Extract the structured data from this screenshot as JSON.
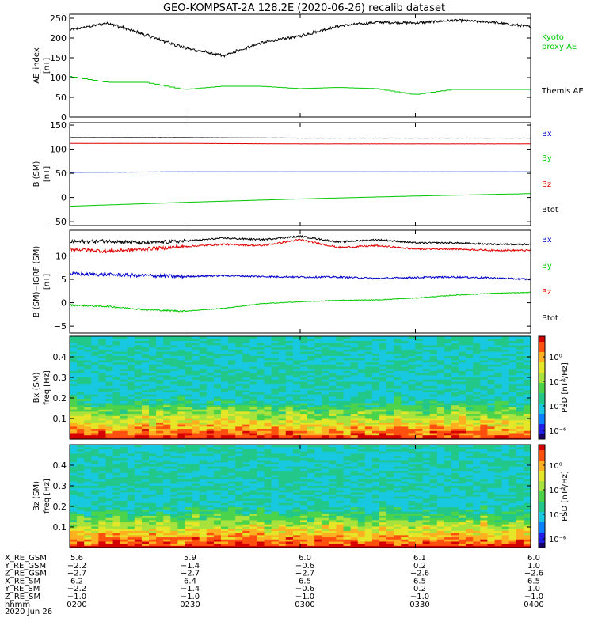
{
  "title": "GEO-KOMPSAT-2A 128.2E (2020-06-26) recalib dataset",
  "colors": {
    "black": "#000000",
    "red": "#e00000",
    "green": "#00c800",
    "blue": "#0000c8"
  },
  "panels": [
    {
      "id": "ae",
      "ylabel1": "AE_index",
      "ylabel2": "[nT]",
      "yticks": [
        0,
        50,
        100,
        150,
        200,
        250
      ],
      "ylim": [
        0,
        260
      ],
      "legend": [
        {
          "text": "Kyoto",
          "color": "green"
        },
        {
          "text": "proxy AE",
          "color": "green"
        },
        {
          "text": "Themis AE",
          "color": "black"
        }
      ]
    },
    {
      "id": "bsm",
      "ylabel1": "B (SM)",
      "ylabel2": "[nT]",
      "yticks": [
        -50,
        0,
        50,
        100,
        150
      ],
      "ylim": [
        -58,
        155
      ],
      "legend": [
        {
          "text": "Bx",
          "color": "blue"
        },
        {
          "text": "By",
          "color": "green"
        },
        {
          "text": "Bz",
          "color": "red"
        },
        {
          "text": "Btot",
          "color": "black"
        }
      ]
    },
    {
      "id": "bdiff",
      "ylabel1": "B (SM)−IGRF (SM)",
      "ylabel2": "[nT]",
      "yticks": [
        -5,
        0,
        5,
        10
      ],
      "ylim": [
        -6.5,
        15.5
      ],
      "legend": [
        {
          "text": "Bx",
          "color": "blue"
        },
        {
          "text": "By",
          "color": "green"
        },
        {
          "text": "Bz",
          "color": "red"
        },
        {
          "text": "Btot",
          "color": "black"
        }
      ]
    },
    {
      "id": "spec_bx",
      "ylabel1": "Bx (SM)",
      "ylabel2": "freq [Hz]",
      "yticks": [
        0.1,
        0.2,
        0.3,
        0.4
      ],
      "ylim": [
        0,
        0.5
      ],
      "colorbar_label": "PSD [nT²/Hz]",
      "colorbar_ticks": [
        "10⁰",
        "10⁻²",
        "10⁻⁴",
        "10⁻⁶"
      ]
    },
    {
      "id": "spec_bz",
      "ylabel1": "Bz (SM)",
      "ylabel2": "freq [Hz]",
      "yticks": [
        0.1,
        0.2,
        0.3,
        0.4
      ],
      "ylim": [
        0,
        0.5
      ],
      "colorbar_label": "PSD [nT²/Hz]",
      "colorbar_ticks": [
        "10⁰",
        "10⁻²",
        "10⁻⁴",
        "10⁻⁶"
      ]
    }
  ],
  "ephemeris": {
    "rows": [
      {
        "label": "X_RE_GSM",
        "values": [
          "5.6",
          "5.9",
          "6.0",
          "6.1",
          "6.0"
        ]
      },
      {
        "label": "Y_RE_GSM",
        "values": [
          "−2.2",
          "−1.4",
          "−0.6",
          "0.2",
          "1.0"
        ]
      },
      {
        "label": "Z_RE_GSM",
        "values": [
          "−2.7",
          "−2.7",
          "−2.7",
          "−2.6",
          "−2.6"
        ]
      },
      {
        "label": "X_RE_SM",
        "values": [
          "6.2",
          "6.4",
          "6.5",
          "6.5",
          "6.5"
        ]
      },
      {
        "label": "Y_RE_SM",
        "values": [
          "−2.2",
          "−1.4",
          "−0.6",
          "0.2",
          "1.0"
        ]
      },
      {
        "label": "Z_RE_SM",
        "values": [
          "−1.0",
          "−1.0",
          "−1.0",
          "−1.0",
          "−1.0"
        ]
      },
      {
        "label": "hhmm",
        "values": [
          "0200",
          "0230",
          "0300",
          "0330",
          "0400"
        ]
      }
    ],
    "date": "2020 Jun 26"
  },
  "chart_data": [
    {
      "type": "line",
      "title": "GEO-KOMPSAT-2A 128.2E (2020-06-26) recalib dataset",
      "xlabel": "hhmm",
      "ylabel": "AE_index [nT]",
      "x": [
        "0200",
        "0210",
        "0220",
        "0230",
        "0240",
        "0250",
        "0300",
        "0310",
        "0320",
        "0330",
        "0340",
        "0350",
        "0400"
      ],
      "ylim": [
        0,
        260
      ],
      "series": [
        {
          "name": "Kyoto proxy AE",
          "color": "green",
          "values": [
            103,
            88,
            88,
            70,
            78,
            78,
            72,
            75,
            72,
            57,
            70,
            70,
            70
          ]
        },
        {
          "name": "Themis AE",
          "color": "black",
          "values": [
            220,
            238,
            207,
            175,
            155,
            188,
            205,
            230,
            240,
            238,
            245,
            240,
            228
          ]
        }
      ]
    },
    {
      "type": "line",
      "ylabel": "B (SM) [nT]",
      "x": [
        "0200",
        "0230",
        "0300",
        "0330",
        "0400"
      ],
      "ylim": [
        -58,
        155
      ],
      "series": [
        {
          "name": "Bx",
          "color": "blue",
          "values": [
            52,
            53,
            53,
            53,
            53
          ]
        },
        {
          "name": "By",
          "color": "green",
          "values": [
            -18,
            -10,
            -3,
            3,
            8
          ]
        },
        {
          "name": "Bz",
          "color": "red",
          "values": [
            112,
            112,
            111,
            111,
            111
          ]
        },
        {
          "name": "Btot",
          "color": "black",
          "values": [
            124,
            124,
            123,
            123,
            123
          ]
        }
      ]
    },
    {
      "type": "line",
      "ylabel": "B (SM)−IGRF (SM) [nT]",
      "x": [
        "0200",
        "0210",
        "0220",
        "0230",
        "0240",
        "0250",
        "0300",
        "0310",
        "0320",
        "0330",
        "0340",
        "0350",
        "0400"
      ],
      "ylim": [
        -6.5,
        15.5
      ],
      "series": [
        {
          "name": "Bx",
          "color": "blue",
          "values": [
            6.2,
            6.0,
            5.8,
            5.6,
            5.8,
            5.6,
            5.5,
            5.5,
            5.2,
            5.4,
            5.5,
            5.3,
            5.0
          ]
        },
        {
          "name": "By",
          "color": "green",
          "values": [
            -0.5,
            -0.8,
            -1.5,
            -1.8,
            -1.2,
            -0.2,
            0.2,
            0.5,
            0.6,
            1.0,
            1.6,
            2.0,
            2.2
          ]
        },
        {
          "name": "Bz",
          "color": "red",
          "values": [
            11.5,
            11.0,
            11.5,
            12.0,
            12.5,
            12.2,
            13.5,
            11.8,
            12.2,
            11.5,
            11.5,
            11.2,
            11.2
          ]
        },
        {
          "name": "Btot",
          "color": "black",
          "values": [
            13.0,
            13.2,
            12.8,
            13.2,
            13.8,
            13.5,
            14.2,
            13.0,
            13.5,
            12.8,
            12.8,
            12.5,
            12.5
          ]
        }
      ]
    },
    {
      "type": "heatmap",
      "ylabel": "Bx (SM) freq [Hz]",
      "x": [
        "0200",
        "0230",
        "0300",
        "0330",
        "0400"
      ],
      "ylim": [
        0,
        0.5
      ],
      "colorbar": "PSD [nT²/Hz]"
    },
    {
      "type": "heatmap",
      "ylabel": "Bz (SM) freq [Hz]",
      "x": [
        "0200",
        "0230",
        "0300",
        "0330",
        "0400"
      ],
      "ylim": [
        0,
        0.5
      ],
      "colorbar": "PSD [nT²/Hz]"
    }
  ]
}
